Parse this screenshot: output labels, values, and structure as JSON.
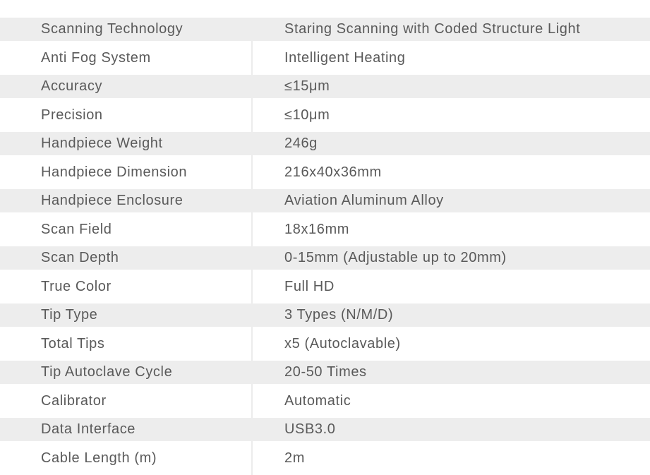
{
  "specs": [
    {
      "label": "Scanning Technology",
      "value": "Staring Scanning with Coded Structure Light"
    },
    {
      "label": "Anti Fog System",
      "value": "Intelligent Heating"
    },
    {
      "label": "Accuracy",
      "value": "≤15μm"
    },
    {
      "label": "Precision",
      "value": "≤10μm"
    },
    {
      "label": "Handpiece Weight",
      "value": "246g"
    },
    {
      "label": "Handpiece Dimension",
      "value": "216x40x36mm"
    },
    {
      "label": "Handpiece Enclosure",
      "value": "Aviation Aluminum Alloy"
    },
    {
      "label": "Scan Field",
      "value": "18x16mm"
    },
    {
      "label": "Scan Depth",
      "value": "0-15mm (Adjustable up to 20mm)"
    },
    {
      "label": "True Color",
      "value": "Full HD"
    },
    {
      "label": "Tip Type",
      "value": "3 Types (N/M/D)"
    },
    {
      "label": "Total Tips",
      "value": "x5 (Autoclavable)"
    },
    {
      "label": "Tip Autoclave Cycle",
      "value": "20-50 Times"
    },
    {
      "label": "Calibrator",
      "value": "Automatic"
    },
    {
      "label": "Data Interface",
      "value": "USB3.0"
    },
    {
      "label": "Cable Length (m)",
      "value": "2m"
    }
  ]
}
